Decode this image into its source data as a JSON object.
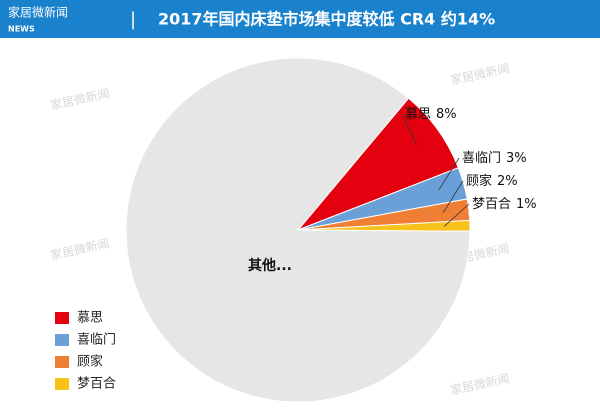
{
  "header": {
    "logo": "家居微新闻",
    "logo_sub": "NEWS",
    "separator": "|"
  },
  "chart_data": {
    "type": "pie",
    "title": "2017年国内床垫市场集中度较低 CR4 约14%",
    "categories": [
      "慕思",
      "喜临门",
      "顾家",
      "梦百合",
      "其他..."
    ],
    "values": [
      8,
      3,
      2,
      1,
      86
    ],
    "value_labels": [
      "8%",
      "3%",
      "2%",
      "1%",
      null
    ],
    "colors": [
      "#e3000f",
      "#6aa0d8",
      "#ef7f35",
      "#f7c21a",
      "#e6e6e6"
    ],
    "legend": [
      "慕思",
      "喜临门",
      "顾家",
      "梦百合"
    ],
    "legend_position": "bottom-left"
  },
  "watermarks": [
    "家居微新闻",
    "家居微新闻",
    "家居微新闻",
    "家居微新闻",
    "家居微新闻"
  ]
}
